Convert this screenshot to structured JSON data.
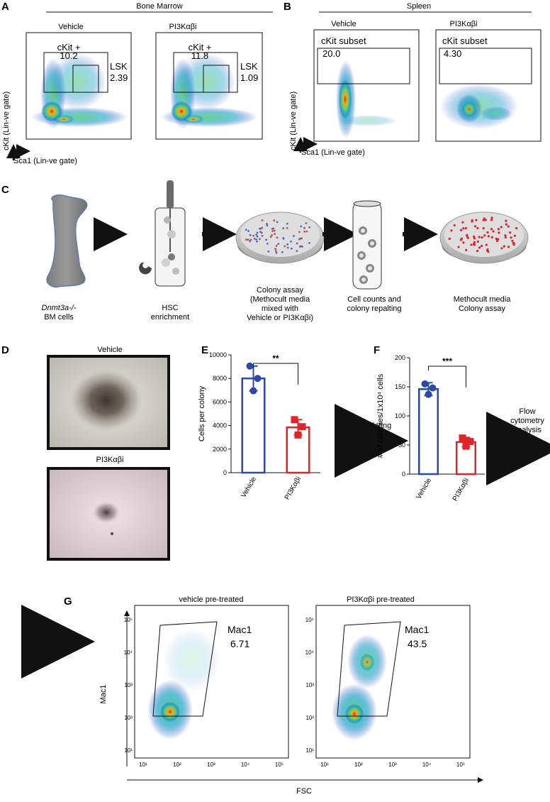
{
  "panel_letters": {
    "a": "A",
    "b": "B",
    "c": "C",
    "d": "D",
    "e": "E",
    "f": "F",
    "g": "G"
  },
  "panel_a": {
    "header": "Bone Marrow",
    "plots": [
      {
        "title": "Vehicle",
        "gate_label": "cKit +",
        "gate_value": "10.2",
        "lsk_label": "LSK",
        "lsk_value": "2.39"
      },
      {
        "title": "PI3Kαβi",
        "gate_label": "cKit +",
        "gate_value": "11.8",
        "lsk_label": "LSK",
        "lsk_value": "1.09"
      }
    ],
    "y_axis": "cKit (Lin-ve gate)",
    "x_axis": "Sca1 (Lin-ve gate)"
  },
  "panel_b": {
    "header": "Spleen",
    "plots": [
      {
        "title": "Vehicle",
        "gate_label": "cKit subset",
        "gate_value": "20.0"
      },
      {
        "title": "PI3Kαβi",
        "gate_label": "cKit subset",
        "gate_value": "4.30"
      }
    ],
    "y_axis": "cKit (Lin-ve gate)",
    "x_axis": "Sca1 (Lin-ve gate)"
  },
  "panel_c": {
    "steps": [
      {
        "line1": "Dnmt3a-/-",
        "line2": "BM cells"
      },
      {
        "line1": "HSC",
        "line2": "enrichment"
      },
      {
        "line1": "Colony assay",
        "line2": "(Methocult media",
        "line3": "mixed with",
        "line4": "Vehicle or PI3Kαβi)"
      },
      {
        "line1": "Cell counts and",
        "line2": "colony repalting"
      },
      {
        "line1": "Methocult media",
        "line2": "Colony assay"
      }
    ]
  },
  "panel_d": {
    "images": [
      {
        "title": "Vehicle"
      },
      {
        "title": "PI3Kαβi"
      }
    ]
  },
  "panel_e": {
    "significance": "**",
    "replating_label": "Replating",
    "chart_data": {
      "type": "bar",
      "categories": [
        "Vehicle",
        "PI3Kαβi"
      ],
      "values": [
        8000,
        3850
      ],
      "error": [
        1050,
        650
      ],
      "points": [
        [
          9050,
          8000,
          6950
        ],
        [
          4500,
          3900,
          3200
        ]
      ],
      "ylabel": "Cells  per colony",
      "ylim": [
        0,
        10000
      ],
      "yticks": [
        0,
        2000,
        4000,
        6000,
        8000,
        10000
      ],
      "colors": [
        "#2b4aa8",
        "#e0242a"
      ]
    }
  },
  "panel_f": {
    "significance": "***",
    "flow_label_1": "Flow",
    "flow_label_2": "cytometry",
    "flow_label_3": "analysis",
    "chart_data": {
      "type": "bar",
      "categories": [
        "Vehicle",
        "PI3Kαβi"
      ],
      "values": [
        146,
        55
      ],
      "error": [
        11,
        8
      ],
      "points": [
        [
          155,
          148,
          137
        ],
        [
          62,
          56,
          48
        ]
      ],
      "ylabel": "# of  colonies/1x10⁴ cells",
      "ylim": [
        0,
        200
      ],
      "yticks": [
        0,
        50,
        100,
        150,
        200
      ],
      "colors": [
        "#2b4aa8",
        "#e0242a"
      ]
    }
  },
  "panel_g": {
    "plots": [
      {
        "title": "vehicle pre-treated",
        "gate_label": "Mac1",
        "gate_value": "6.71"
      },
      {
        "title": "PI3Kαβi pre-treated",
        "gate_label": "Mac1",
        "gate_value": "43.5"
      }
    ],
    "y_axis": "Mac1",
    "x_axis": "FSC",
    "ticks": [
      "10¹",
      "10²",
      "10³",
      "10⁴",
      "10⁵"
    ]
  }
}
